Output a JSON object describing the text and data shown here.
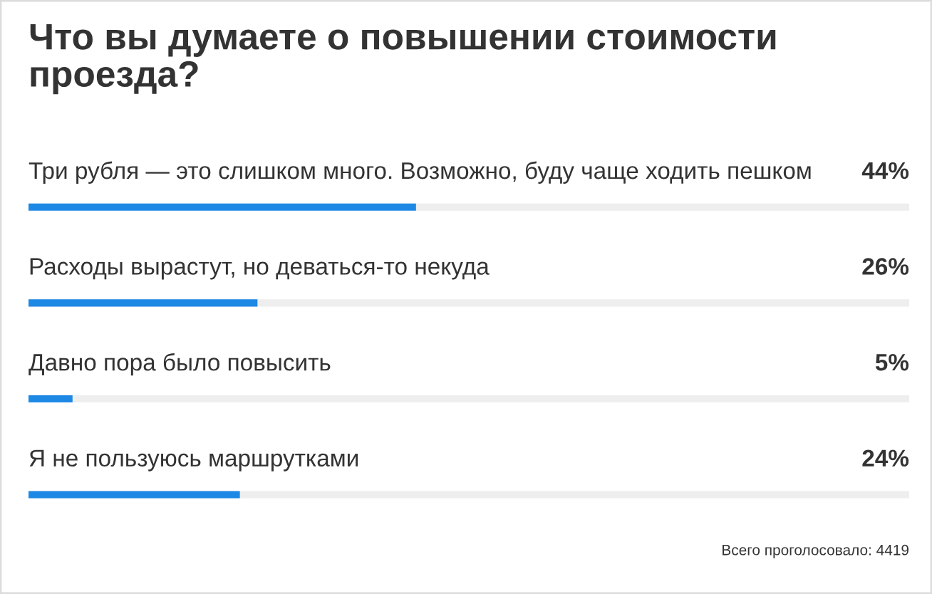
{
  "chart_data": {
    "type": "bar",
    "orientation": "horizontal",
    "title": "Что вы думаете о повышении стоимости проезда?",
    "categories": [
      "Три рубля — это слишком много. Возможно, буду чаще ходить пешком",
      "Расходы вырастут, но деваться-то некуда",
      "Давно пора было повысить",
      "Я не пользуюсь маршрутками"
    ],
    "values": [
      44,
      26,
      5,
      24
    ],
    "value_labels": [
      "44%",
      "26%",
      "5%",
      "24%"
    ],
    "color": "#1e88e5",
    "xlim": [
      0,
      100
    ],
    "tick_labels": false,
    "annotations": [
      "Всего проголосовало: 4419"
    ]
  }
}
